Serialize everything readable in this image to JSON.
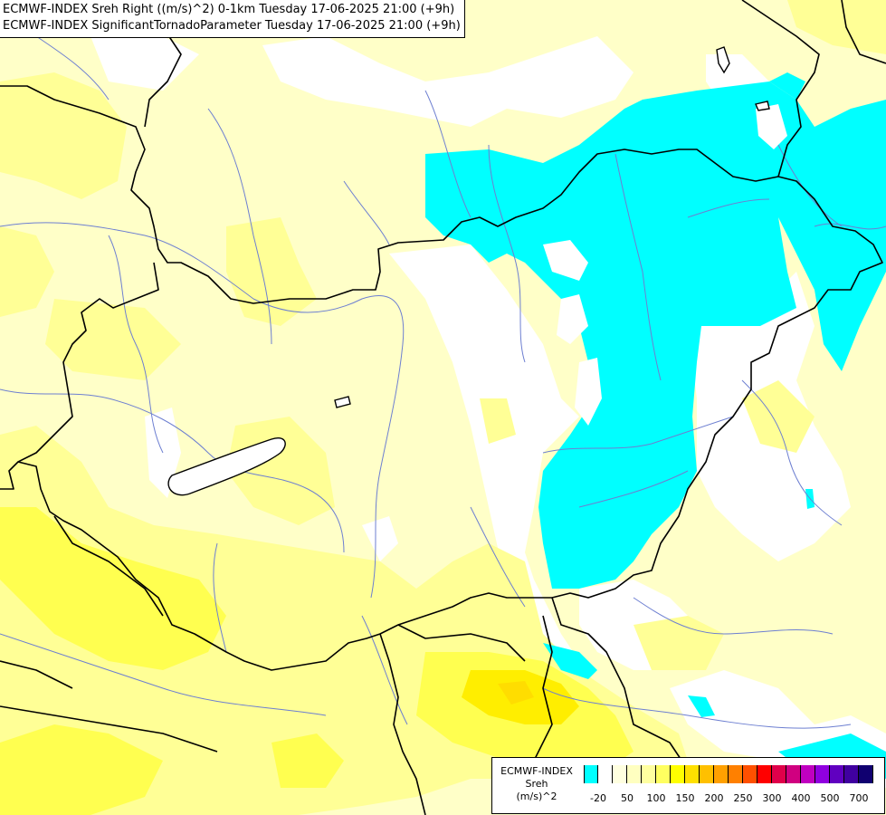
{
  "header": {
    "line1": "ECMWF-INDEX Sreh Right ((m/s)^2) 0-1km Tuesday 17-06-2025 21:00 (+9h)",
    "line2": "ECMWF-INDEX SignificantTornadoParameter Tuesday 17-06-2025 21:00 (+9h)"
  },
  "legend": {
    "title_line1": "ECMWF-INDEX",
    "title_line2": "Sreh",
    "title_line3": "(m/s)^2",
    "colors": [
      "#00ffff",
      "#ffffff",
      "#ffffe0",
      "#ffffc0",
      "#ffffa0",
      "#ffff60",
      "#ffff00",
      "#ffe000",
      "#ffc000",
      "#ffa000",
      "#ff8000",
      "#ff5000",
      "#ff0000",
      "#e0004a",
      "#d00080",
      "#c000c0",
      "#9000e0",
      "#6000c0",
      "#4000a0",
      "#100070"
    ],
    "ticks": [
      {
        "label": "-20",
        "index": 1
      },
      {
        "label": "50",
        "index": 3
      },
      {
        "label": "100",
        "index": 5
      },
      {
        "label": "150",
        "index": 7
      },
      {
        "label": "200",
        "index": 9
      },
      {
        "label": "250",
        "index": 11
      },
      {
        "label": "300",
        "index": 13
      },
      {
        "label": "400",
        "index": 15
      },
      {
        "label": "500",
        "index": 17
      },
      {
        "label": "700",
        "index": 19
      }
    ]
  },
  "map_colors": {
    "base": "#ffffc8",
    "pale": "#ffffe6",
    "light_yellow": "#ffff96",
    "yellow": "#ffff50",
    "strong_yellow": "#ffee00",
    "cyan": "#00ffff",
    "white": "#ffffff",
    "border": "#000000",
    "river": "#6d7fd1"
  }
}
